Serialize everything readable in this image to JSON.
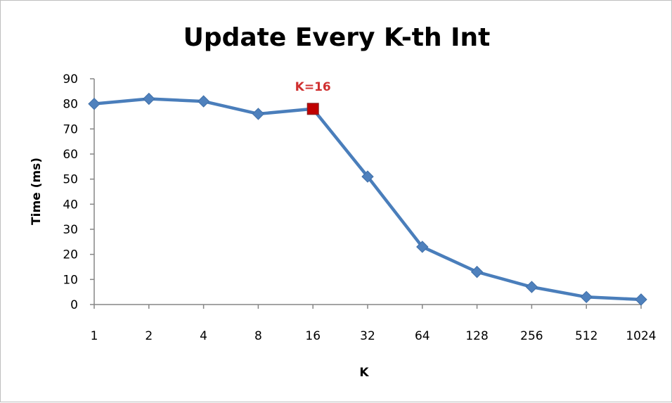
{
  "chart_data": {
    "type": "line",
    "title": "Update Every K-th Int",
    "xlabel": "K",
    "ylabel": "Time (ms)",
    "categories": [
      "1",
      "2",
      "4",
      "8",
      "16",
      "32",
      "64",
      "128",
      "256",
      "512",
      "1024"
    ],
    "series": [
      {
        "values": [
          80,
          82,
          81,
          76,
          78,
          51,
          23,
          13,
          7,
          3,
          2
        ]
      }
    ],
    "ylim": [
      0,
      90
    ],
    "yticks": [
      0,
      10,
      20,
      30,
      40,
      50,
      60,
      70,
      80,
      90
    ],
    "grid": false,
    "legend": "none",
    "annotation": {
      "text": "K=16",
      "category": "16",
      "value": 78
    },
    "colors": {
      "line": "#4a7ebb",
      "marker": "#4f81bd",
      "highlight": "#c00000",
      "annotation": "#d03030"
    }
  }
}
